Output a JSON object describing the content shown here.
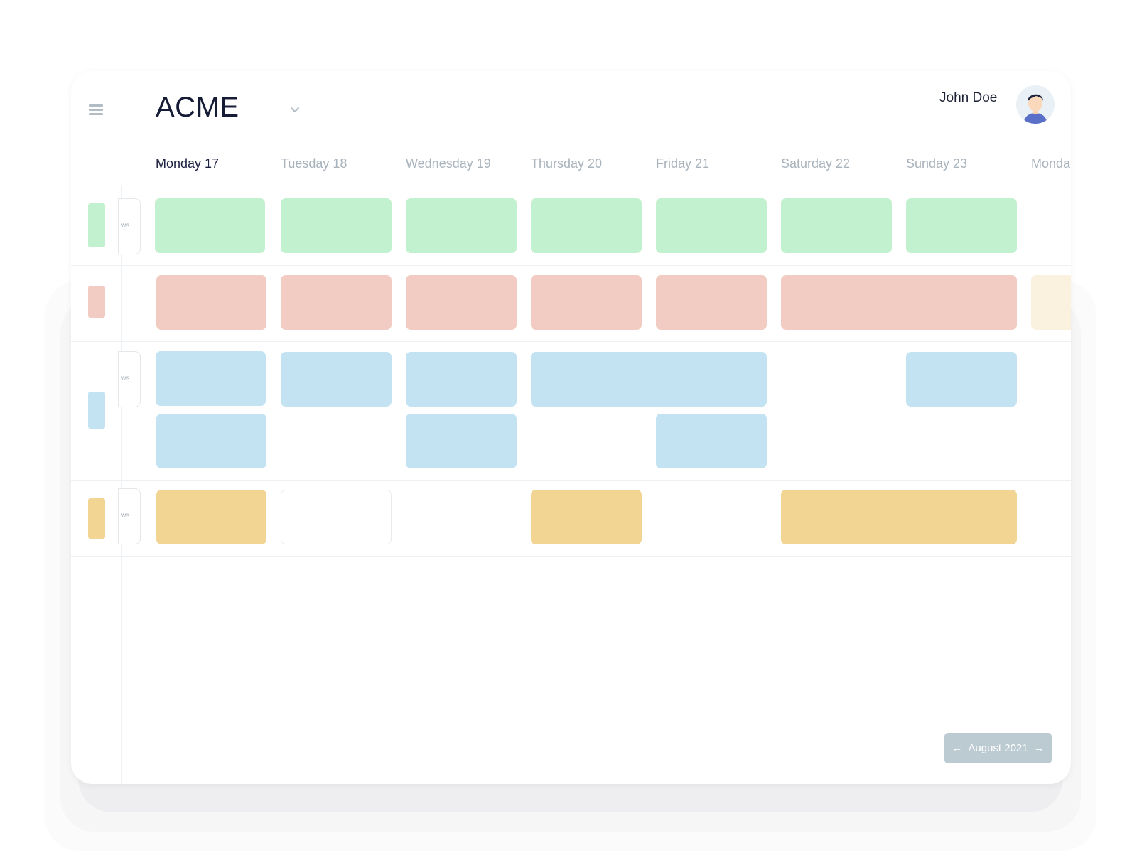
{
  "header": {
    "brand": "ACME",
    "user_name": "John Doe"
  },
  "icons": {
    "menu": "hamburger-icon",
    "brand_dropdown": "chevron-down-icon",
    "avatar": "user-avatar",
    "prev": "arrow-left-icon",
    "next": "arrow-right-icon"
  },
  "days": [
    {
      "label": "Monday 17"
    },
    {
      "label": "Tuesday 18"
    },
    {
      "label": "Wednesday 19"
    },
    {
      "label": "Thursday 20"
    },
    {
      "label": "Friday 21"
    },
    {
      "label": "Saturday 22"
    },
    {
      "label": "Sunday 23"
    },
    {
      "label": "Monda"
    }
  ],
  "rows": [
    {
      "chip_text": "ws"
    },
    {
      "chip_text": "ws"
    },
    {
      "chip_text": "ws"
    }
  ],
  "month_nav": {
    "prev_arrow": "←",
    "label": "August 2021",
    "next_arrow": "→"
  },
  "colors": {
    "green": "#c1f1cf",
    "red": "#f2ccc2",
    "blue": "#c3e3f2",
    "yellow": "#f2d592",
    "pale_yellow": "#faf1de",
    "accent_text": "#1b2040",
    "muted_text": "#a9b3bc",
    "nav_button": "#bccbd2"
  }
}
